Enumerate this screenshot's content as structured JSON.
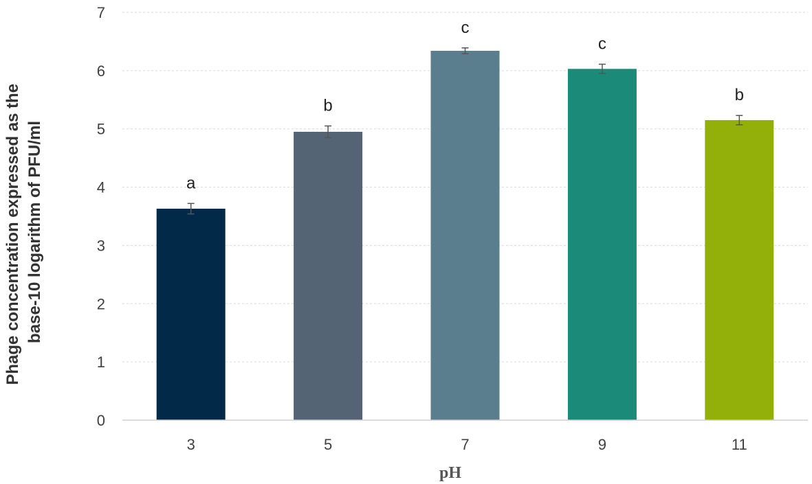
{
  "chart_data": {
    "type": "bar",
    "categories": [
      "3",
      "5",
      "7",
      "9",
      "11"
    ],
    "values": [
      3.63,
      4.95,
      6.34,
      6.03,
      5.15
    ],
    "errors": [
      0.09,
      0.1,
      0.05,
      0.08,
      0.08
    ],
    "significance_labels": [
      "a",
      "b",
      "c",
      "c",
      "b"
    ],
    "colors": [
      "#022a48",
      "#546474",
      "#5a7e8e",
      "#1c8a78",
      "#93b00a"
    ],
    "xlabel": "pH",
    "ylabel_lines": [
      "Phage concentration expressed as the",
      "base-10 logarithm of PFU/ml"
    ],
    "ylim": [
      0,
      7
    ],
    "yticks": [
      "0",
      "1",
      "2",
      "3",
      "4",
      "5",
      "6",
      "7"
    ],
    "grid": "dashed horizontal",
    "legend": "none"
  }
}
